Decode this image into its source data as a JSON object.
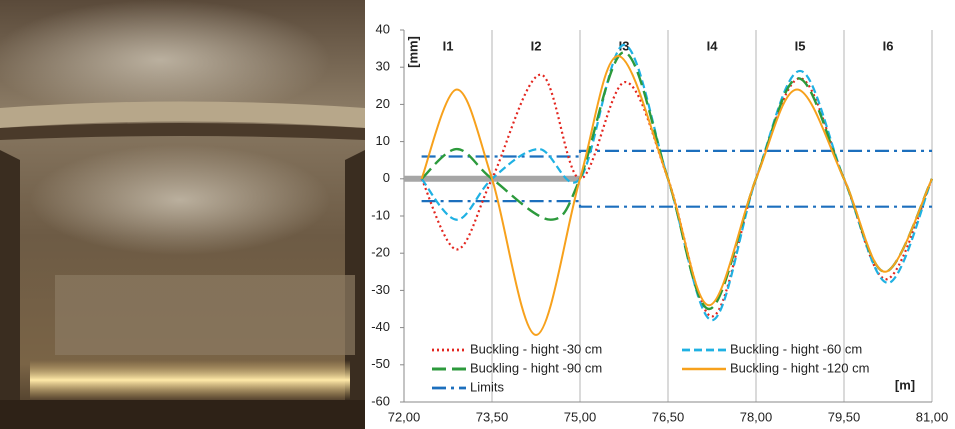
{
  "chart_data": {
    "type": "line",
    "y_label": "[mm]",
    "x_label": "[m]",
    "sections": [
      "I1",
      "I2",
      "I3",
      "I4",
      "I5",
      "I6"
    ],
    "xlim": [
      72,
      81
    ],
    "xticks": [
      {
        "value": 72,
        "label": "72,00"
      },
      {
        "value": 73.5,
        "label": "73,50"
      },
      {
        "value": 75,
        "label": "75,00"
      },
      {
        "value": 76.5,
        "label": "76,50"
      },
      {
        "value": 78,
        "label": "78,00"
      },
      {
        "value": 79.5,
        "label": "79,50"
      },
      {
        "value": 81,
        "label": "81,00"
      }
    ],
    "ylim": [
      -60,
      40
    ],
    "yticks": [
      -60,
      -50,
      -40,
      -30,
      -20,
      -10,
      0,
      10,
      20,
      30,
      40
    ],
    "grid": true,
    "series": [
      {
        "name": "Buckling - hight -30 cm",
        "color": "#e3261f",
        "style": "dotted",
        "x": [
          72.3,
          72.9,
          73.5,
          74.33,
          75,
          75.77,
          76.5,
          77.25,
          78,
          78.75,
          79.5,
          80.22,
          81
        ],
        "values": [
          0,
          -19,
          0,
          28,
          0,
          26,
          0,
          -37,
          0,
          27,
          0,
          -27,
          0
        ]
      },
      {
        "name": "Buckling - hight -60 cm",
        "color": "#1fb1e3",
        "style": "dashed",
        "x": [
          72.3,
          72.9,
          73.5,
          74.3,
          75,
          75.75,
          76.5,
          77.25,
          78,
          78.75,
          79.5,
          80.25,
          81
        ],
        "values": [
          0,
          -11,
          0,
          8,
          0,
          36,
          0,
          -38,
          0,
          29,
          0,
          -28,
          0
        ]
      },
      {
        "name": "Buckling - hight -90 cm",
        "color": "#2c9a3c",
        "style": "longdash",
        "x": [
          72.3,
          72.9,
          73.5,
          74.5,
          75,
          75.75,
          76.5,
          77.2,
          78,
          78.72,
          79.5,
          80.2,
          81
        ],
        "values": [
          0,
          8,
          0,
          -11,
          0,
          34,
          0,
          -35,
          0,
          27,
          0,
          -25,
          0
        ]
      },
      {
        "name": "Buckling - hight -120 cm",
        "color": "#f7a11c",
        "style": "solid",
        "x": [
          72.3,
          72.9,
          73.5,
          74.25,
          75,
          75.65,
          76.5,
          77.2,
          78,
          78.7,
          79.5,
          80.2,
          81
        ],
        "values": [
          0,
          24,
          0,
          -42,
          0,
          33,
          0,
          -34,
          0,
          24,
          0,
          -25,
          0
        ]
      },
      {
        "name": "Limits",
        "color": "#1c6fbd",
        "style": "dashdot",
        "x": [
          72.3,
          75,
          75,
          81
        ],
        "values": [
          6,
          6,
          7.5,
          7.5
        ],
        "lower": [
          -6,
          -6,
          -7.5,
          -7.5
        ]
      }
    ]
  }
}
